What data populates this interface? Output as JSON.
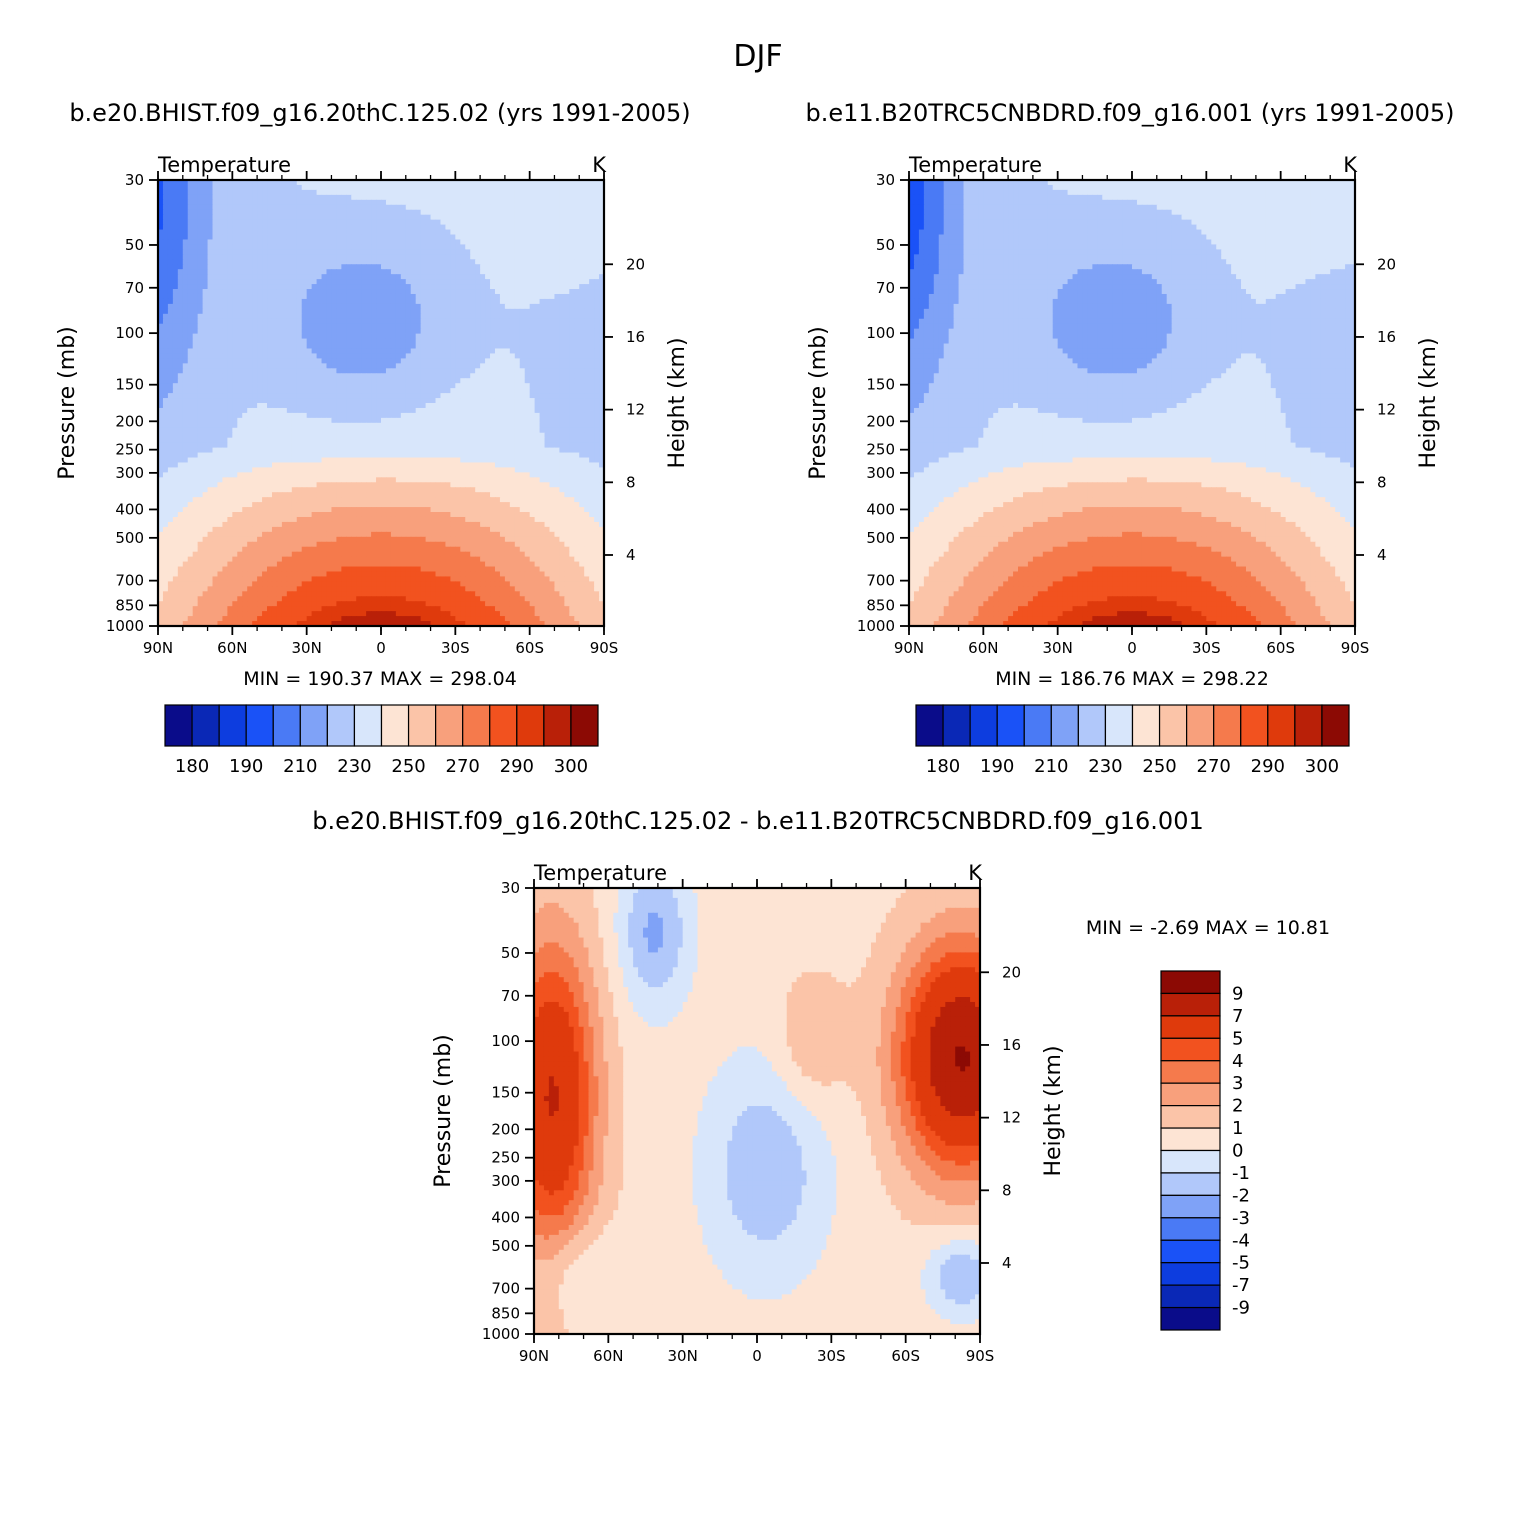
{
  "figure": {
    "title": "DJF",
    "left_subtitle": "b.e20.BHIST.f09_g16.20thC.125.02 (yrs 1991-2005)",
    "right_subtitle": "b.e11.B20TRC5CNBDRD.f09_g16.001 (yrs 1991-2005)",
    "diff_subtitle": "b.e20.BHIST.f09_g16.20thC.125.02 - b.e11.B20TRC5CNBDRD.f09_g16.001"
  },
  "chart_data": [
    {
      "id": "left",
      "type": "contour",
      "variable": "Temperature",
      "units": "K",
      "ylabel": "Pressure (mb)",
      "y2label": "Height (km)",
      "pressure_ticks": [
        "30",
        "50",
        "70",
        "100",
        "150",
        "200",
        "250",
        "300",
        "400",
        "500",
        "700",
        "850",
        "1000"
      ],
      "lat_ticks": [
        "90N",
        "60N",
        "30N",
        "0",
        "30S",
        "60S",
        "90S"
      ],
      "height_ticks": [
        "4",
        "8",
        "12",
        "16",
        "20"
      ],
      "min_label": "MIN = 190.37",
      "max_label": "MAX = 298.04",
      "min": 190.37,
      "max": 298.04,
      "levels": [
        180,
        185,
        190,
        200,
        210,
        220,
        230,
        240,
        250,
        260,
        270,
        280,
        290,
        295,
        300
      ],
      "colorbar_labels": [
        "180",
        "190",
        "210",
        "230",
        "250",
        "270",
        "290",
        "300"
      ]
    },
    {
      "id": "right",
      "type": "contour",
      "variable": "Temperature",
      "units": "K",
      "ylabel": "Pressure (mb)",
      "y2label": "Height (km)",
      "pressure_ticks": [
        "30",
        "50",
        "70",
        "100",
        "150",
        "200",
        "250",
        "300",
        "400",
        "500",
        "700",
        "850",
        "1000"
      ],
      "lat_ticks": [
        "90N",
        "60N",
        "30N",
        "0",
        "30S",
        "60S",
        "90S"
      ],
      "height_ticks": [
        "4",
        "8",
        "12",
        "16",
        "20"
      ],
      "min_label": "MIN = 186.76",
      "max_label": "MAX = 298.22",
      "min": 186.76,
      "max": 298.22,
      "levels": [
        180,
        185,
        190,
        200,
        210,
        220,
        230,
        240,
        250,
        260,
        270,
        280,
        290,
        295,
        300
      ],
      "colorbar_labels": [
        "180",
        "190",
        "210",
        "230",
        "250",
        "270",
        "290",
        "300"
      ]
    },
    {
      "id": "diff",
      "type": "contour",
      "variable": "Temperature",
      "units": "K",
      "ylabel": "Pressure (mb)",
      "y2label": "Height (km)",
      "pressure_ticks": [
        "30",
        "50",
        "70",
        "100",
        "150",
        "200",
        "250",
        "300",
        "400",
        "500",
        "700",
        "850",
        "1000"
      ],
      "lat_ticks": [
        "90N",
        "60N",
        "30N",
        "0",
        "30S",
        "60S",
        "90S"
      ],
      "height_ticks": [
        "4",
        "8",
        "12",
        "16",
        "20"
      ],
      "min_label": "MIN = -2.69",
      "max_label": "MAX = 10.81",
      "min": -2.69,
      "max": 10.81,
      "levels": [
        -9,
        -7,
        -5,
        -4,
        -3,
        -2,
        -1,
        0,
        1,
        2,
        3,
        4,
        5,
        7,
        9
      ],
      "colorbar_labels": [
        "9",
        "7",
        "5",
        "4",
        "3",
        "2",
        "1",
        "0",
        "-1",
        "-2",
        "-3",
        "-4",
        "-5",
        "-7",
        "-9"
      ]
    }
  ],
  "colors": {
    "abs_palette": [
      "#0a0c8a",
      "#0a28b6",
      "#0d3ddf",
      "#1a52f7",
      "#4a7af5",
      "#7fa2f7",
      "#b1c8fa",
      "#d8e6fb",
      "#fde4d4",
      "#fbc4a8",
      "#f8a07c",
      "#f57a4c",
      "#f2521f",
      "#df3a0c",
      "#b92008",
      "#8c0a04"
    ],
    "diff_palette": [
      "#0a0c8a",
      "#0a28b6",
      "#0d3ddf",
      "#1a52f7",
      "#4a7af5",
      "#7fa2f7",
      "#b1c8fa",
      "#d8e6fb",
      "#fde4d4",
      "#fbc4a8",
      "#f8a07c",
      "#f57a4c",
      "#f2521f",
      "#df3a0c",
      "#b92008",
      "#8c0a04"
    ]
  }
}
